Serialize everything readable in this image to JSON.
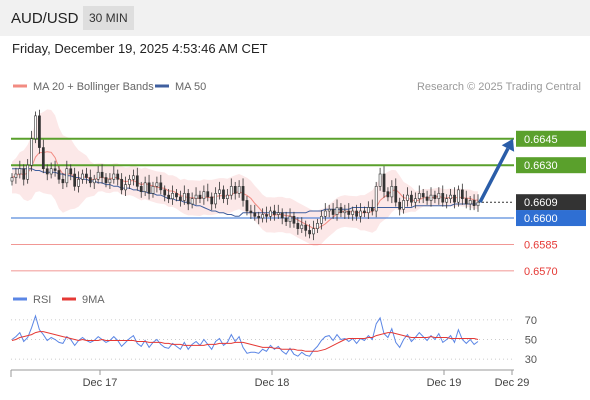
{
  "header": {
    "symbol": "AUD/USD",
    "timeframe": "30 MIN"
  },
  "datetime": "Friday, December 19, 2025 4:53:46 AM CET",
  "legend": {
    "ma20": "MA 20 + Bollinger Bands",
    "ma50": "MA 50",
    "credit": "Research © 2025 Trading Central",
    "colors": {
      "ma20": "#f28b82",
      "ma50": "#3f5f9f"
    }
  },
  "rsi_legend": {
    "rsi": "RSI",
    "ma9": "9MA",
    "colors": {
      "rsi": "#5b86e5",
      "ma9": "#e53935"
    }
  },
  "chart_data": [
    {
      "type": "candlestick",
      "ylim": [
        0.6562,
        0.6667
      ],
      "x_labels": [
        "Dec 17",
        "Dec 18",
        "Dec 19",
        "Dec 29"
      ],
      "levels": [
        {
          "value": 0.6645,
          "label": "0.6645",
          "kind": "resistance",
          "color": "#5aa02c"
        },
        {
          "value": 0.663,
          "label": "0.6630",
          "kind": "resistance",
          "color": "#5aa02c"
        },
        {
          "value": 0.6609,
          "label": "0.6609",
          "kind": "last",
          "color": "#333333"
        },
        {
          "value": 0.66,
          "label": "0.6600",
          "kind": "pivot",
          "color": "#2f6fd3"
        },
        {
          "value": 0.6585,
          "label": "0.6585",
          "kind": "support",
          "color": "#e53935"
        },
        {
          "value": 0.657,
          "label": "0.6570",
          "kind": "support",
          "color": "#e53935"
        }
      ],
      "last_price": 0.6609,
      "target": 0.6645,
      "close": [
        0.6623,
        0.6625,
        0.6628,
        0.6622,
        0.663,
        0.6645,
        0.6658,
        0.664,
        0.6628,
        0.6625,
        0.6628,
        0.6627,
        0.6622,
        0.662,
        0.6628,
        0.6625,
        0.6618,
        0.6622,
        0.6625,
        0.6623,
        0.662,
        0.6622,
        0.6626,
        0.6623,
        0.662,
        0.6622,
        0.6625,
        0.6622,
        0.6616,
        0.6619,
        0.6622,
        0.6624,
        0.6618,
        0.6615,
        0.662,
        0.6614,
        0.6618,
        0.662,
        0.6616,
        0.6613,
        0.6611,
        0.6614,
        0.6612,
        0.661,
        0.6614,
        0.6608,
        0.6611,
        0.6613,
        0.6611,
        0.6615,
        0.6612,
        0.6608,
        0.6614,
        0.6616,
        0.6611,
        0.6613,
        0.6618,
        0.6614,
        0.6618,
        0.661,
        0.6604,
        0.6603,
        0.6601,
        0.66,
        0.6602,
        0.6601,
        0.6604,
        0.6602,
        0.6603,
        0.66,
        0.6598,
        0.6601,
        0.6597,
        0.6594,
        0.6596,
        0.6593,
        0.6591,
        0.6594,
        0.6597,
        0.6601,
        0.6604,
        0.6605,
        0.6602,
        0.6606,
        0.6603,
        0.6604,
        0.6602,
        0.6604,
        0.6601,
        0.6604,
        0.6603,
        0.6606,
        0.6604,
        0.6618,
        0.6625,
        0.6615,
        0.6612,
        0.6618,
        0.6609,
        0.6605,
        0.661,
        0.6613,
        0.6609,
        0.6611,
        0.6614,
        0.6612,
        0.661,
        0.6613,
        0.6611,
        0.6614,
        0.6609,
        0.6611,
        0.6613,
        0.6609,
        0.6616,
        0.6611,
        0.6608,
        0.661,
        0.6607,
        0.6609
      ],
      "ma50": [
        0.6628,
        0.6628,
        0.6628,
        0.6628,
        0.6628,
        0.6628,
        0.6627,
        0.6627,
        0.6626,
        0.6626,
        0.6626,
        0.6626,
        0.6625,
        0.6625,
        0.6624,
        0.6624,
        0.6623,
        0.6623,
        0.6622,
        0.6622,
        0.6621,
        0.6621,
        0.662,
        0.662,
        0.6619,
        0.6619,
        0.6618,
        0.6618,
        0.6617,
        0.6617,
        0.6617,
        0.6616,
        0.6616,
        0.6615,
        0.6615,
        0.6614,
        0.6614,
        0.6613,
        0.6613,
        0.6612,
        0.6611,
        0.6611,
        0.661,
        0.661,
        0.6609,
        0.6609,
        0.6608,
        0.6607,
        0.6607,
        0.6606,
        0.6605,
        0.6604,
        0.6604,
        0.6603,
        0.6603,
        0.6602,
        0.6602,
        0.6601,
        0.6601,
        0.6603,
        0.6603,
        0.6603,
        0.6603,
        0.6603,
        0.6603,
        0.6603,
        0.6603,
        0.6603,
        0.6603,
        0.6603,
        0.6603,
        0.6603,
        0.6603,
        0.6603,
        0.6603,
        0.6603,
        0.6604,
        0.6604,
        0.6604,
        0.6604,
        0.6605,
        0.6605,
        0.6605,
        0.6605,
        0.6605,
        0.6605,
        0.6605,
        0.6606,
        0.6606,
        0.6606,
        0.6606,
        0.6606,
        0.6606,
        0.6606,
        0.6606,
        0.6606,
        0.6606,
        0.6606,
        0.6606,
        0.6606,
        0.6606,
        0.6606,
        0.6606,
        0.6607,
        0.6607,
        0.6607,
        0.6607,
        0.6607,
        0.6607,
        0.6607,
        0.6607,
        0.6607,
        0.6607,
        0.6608,
        0.6608,
        0.6608,
        0.6608,
        0.6608,
        0.6608,
        0.6608
      ],
      "bb_width": [
        0.0009,
        0.001,
        0.0012,
        0.0014,
        0.0016,
        0.0018,
        0.002,
        0.0022,
        0.0023,
        0.0024,
        0.0024,
        0.0024,
        0.0023,
        0.0022,
        0.0021,
        0.002,
        0.0018,
        0.0016,
        0.0014,
        0.0012,
        0.001,
        0.0009,
        0.0008,
        0.0008,
        0.0008,
        0.0008,
        0.0008,
        0.0008,
        0.0008,
        0.0008,
        0.0008,
        0.0009,
        0.0009,
        0.0009,
        0.0009,
        0.0009,
        0.0009,
        0.0009,
        0.0009,
        0.0009,
        0.0009,
        0.0009,
        0.0009,
        0.0009,
        0.001,
        0.001,
        0.001,
        0.001,
        0.001,
        0.001,
        0.001,
        0.001,
        0.001,
        0.001,
        0.001,
        0.001,
        0.001,
        0.001,
        0.001,
        0.001,
        0.001,
        0.001,
        0.001,
        0.001,
        0.001,
        0.001,
        0.001,
        0.001,
        0.001,
        0.001,
        0.001,
        0.001,
        0.001,
        0.001,
        0.001,
        0.001,
        0.001,
        0.001,
        0.001,
        0.001,
        0.0009,
        0.0009,
        0.0009,
        0.0009,
        0.0009,
        0.0009,
        0.0009,
        0.0009,
        0.0009,
        0.001,
        0.001,
        0.0011,
        0.0012,
        0.0013,
        0.0013,
        0.0013,
        0.0013,
        0.0012,
        0.0011,
        0.001,
        0.0009,
        0.0008,
        0.0007,
        0.0006,
        0.0005,
        0.0005,
        0.0005,
        0.0005,
        0.0005,
        0.0005,
        0.0005,
        0.0005,
        0.0005,
        0.0005,
        0.0005,
        0.0005,
        0.0005,
        0.0005,
        0.0005,
        0.0005
      ]
    },
    {
      "type": "line",
      "ylim": [
        22,
        78
      ],
      "y_ticks": [
        70,
        50,
        30
      ],
      "rsi": [
        50,
        53,
        57,
        48,
        52,
        62,
        74,
        60,
        55,
        49,
        52,
        50,
        47,
        46,
        53,
        50,
        44,
        49,
        52,
        49,
        47,
        49,
        53,
        50,
        47,
        49,
        53,
        49,
        43,
        47,
        51,
        54,
        46,
        43,
        49,
        42,
        47,
        50,
        45,
        42,
        41,
        46,
        43,
        40,
        47,
        40,
        45,
        48,
        44,
        50,
        45,
        40,
        48,
        51,
        44,
        47,
        55,
        48,
        53,
        42,
        36,
        37,
        37,
        36,
        40,
        38,
        44,
        40,
        43,
        38,
        35,
        41,
        35,
        33,
        37,
        34,
        33,
        39,
        43,
        49,
        53,
        54,
        49,
        55,
        50,
        51,
        48,
        51,
        46,
        51,
        49,
        54,
        50,
        66,
        72,
        56,
        52,
        61,
        47,
        42,
        50,
        55,
        48,
        52,
        57,
        53,
        49,
        54,
        50,
        56,
        47,
        50,
        54,
        47,
        60,
        50,
        46,
        50,
        45,
        48
      ],
      "ma9": [
        49,
        50,
        52,
        53,
        54,
        55,
        57,
        58,
        58,
        57,
        56,
        55,
        54,
        53,
        52,
        51,
        50,
        49,
        50,
        49,
        49,
        49,
        49,
        50,
        49,
        49,
        49,
        49,
        49,
        49,
        49,
        49,
        48,
        48,
        48,
        47,
        47,
        47,
        47,
        46,
        46,
        45,
        45,
        45,
        44,
        44,
        44,
        44,
        44,
        44,
        45,
        45,
        45,
        46,
        46,
        46,
        46,
        47,
        47,
        47,
        46,
        45,
        44,
        43,
        42,
        42,
        42,
        41,
        41,
        40,
        40,
        40,
        40,
        39,
        39,
        38,
        38,
        38,
        38,
        39,
        40,
        42,
        44,
        46,
        48,
        50,
        51,
        51,
        51,
        51,
        51,
        52,
        52,
        54,
        55,
        56,
        57,
        57,
        56,
        55,
        54,
        53,
        52,
        52,
        52,
        52,
        52,
        53,
        52,
        52,
        52,
        52,
        51,
        51,
        51,
        51,
        51,
        51,
        51,
        50
      ]
    }
  ]
}
